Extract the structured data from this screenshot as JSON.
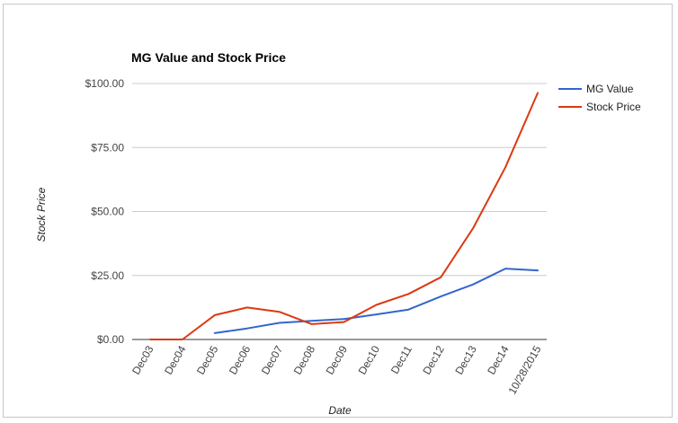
{
  "chart_data": {
    "type": "line",
    "title": "MG Value and Stock Price",
    "xlabel": "Date",
    "ylabel": "Stock Price",
    "categories": [
      "Dec03",
      "Dec04",
      "Dec05",
      "Dec06",
      "Dec07",
      "Dec08",
      "Dec09",
      "Dec10",
      "Dec11",
      "Dec12",
      "Dec13",
      "Dec14",
      "10/28/2015"
    ],
    "y_ticks": [
      "$0.00",
      "$25.00",
      "$50.00",
      "$75.00",
      "$100.00"
    ],
    "ylim": [
      0,
      100
    ],
    "grid": true,
    "legend_position": "right",
    "series": [
      {
        "name": "MG Value",
        "color": "#3366cc",
        "values": [
          null,
          null,
          2.5,
          4.3,
          6.5,
          7.3,
          8.0,
          9.8,
          11.7,
          16.8,
          21.5,
          27.7,
          27.0
        ]
      },
      {
        "name": "Stock Price",
        "color": "#dc3912",
        "values": [
          0,
          0,
          9.5,
          12.5,
          10.8,
          6.0,
          6.8,
          13.5,
          17.8,
          24.3,
          43.5,
          67.3,
          96.3
        ]
      }
    ]
  }
}
